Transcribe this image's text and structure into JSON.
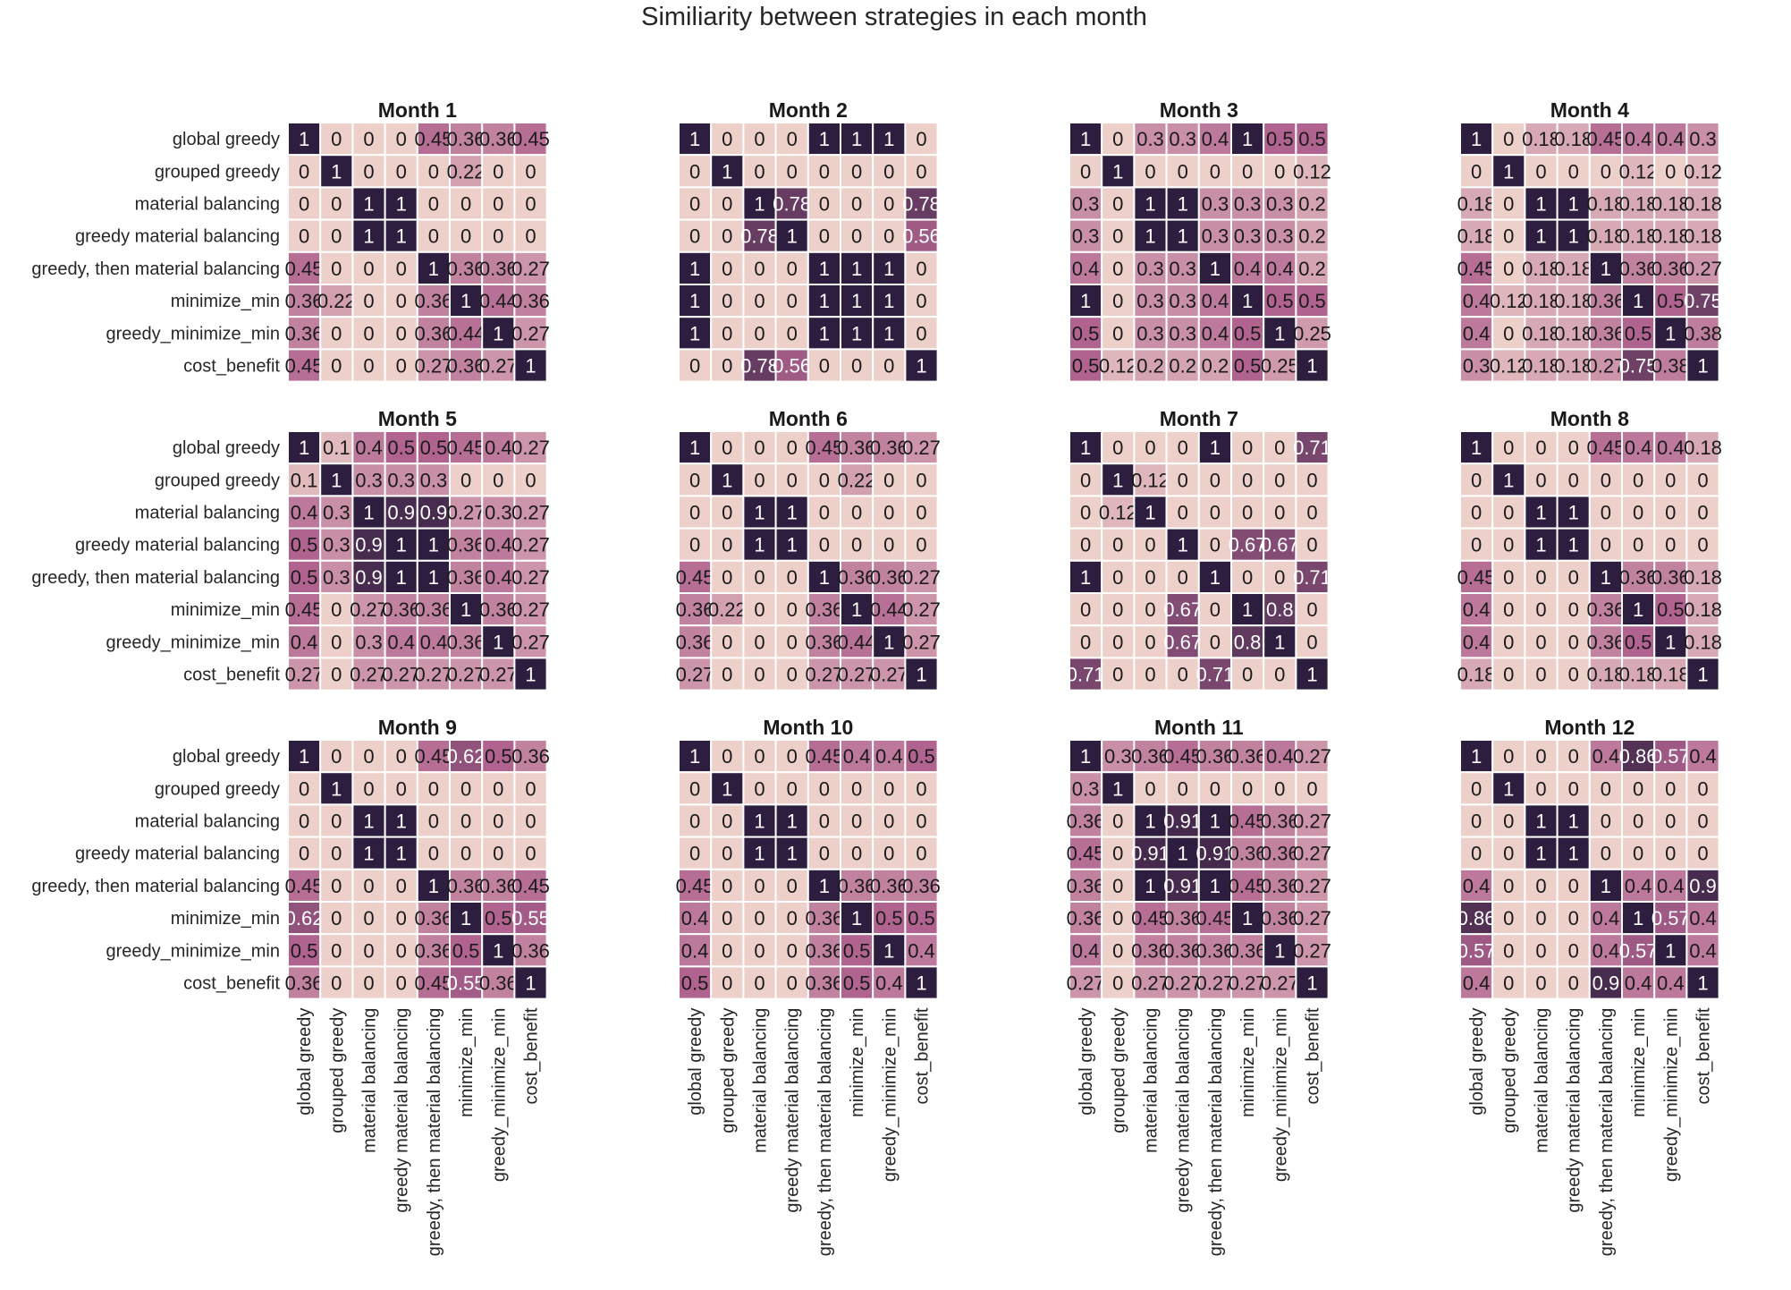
{
  "chart_data": {
    "type": "heatmap",
    "title": "Similiarity between strategies in each month",
    "labels": [
      "global greedy",
      "grouped greedy",
      "material balancing",
      "greedy material balancing",
      "greedy, then material balancing",
      "minimize_min",
      "greedy_minimize_min",
      "cost_benefit"
    ],
    "value_range": [
      0,
      1
    ],
    "colors": {
      "low": "#ecd0c9",
      "mid": "#b0638f",
      "high": "#2d1e3f",
      "label_dark": "#1a1a1a",
      "label_light": "#ffffff",
      "grid_line": "#ffffff"
    },
    "panels": [
      {
        "title": "Month 1",
        "matrix": [
          [
            "1",
            "0",
            "0",
            "0",
            "0.45",
            "0.36",
            "0.36",
            "0.45"
          ],
          [
            "0",
            "1",
            "0",
            "0",
            "0",
            "0.22",
            "0",
            "0"
          ],
          [
            "0",
            "0",
            "1",
            "1",
            "0",
            "0",
            "0",
            "0"
          ],
          [
            "0",
            "0",
            "1",
            "1",
            "0",
            "0",
            "0",
            "0"
          ],
          [
            "0.45",
            "0",
            "0",
            "0",
            "1",
            "0.36",
            "0.36",
            "0.27"
          ],
          [
            "0.36",
            "0.22",
            "0",
            "0",
            "0.36",
            "1",
            "0.44",
            "0.36"
          ],
          [
            "0.36",
            "0",
            "0",
            "0",
            "0.36",
            "0.44",
            "1",
            "0.27"
          ],
          [
            "0.45",
            "0",
            "0",
            "0",
            "0.27",
            "0.36",
            "0.27",
            "1"
          ]
        ]
      },
      {
        "title": "Month 2",
        "matrix": [
          [
            "1",
            "0",
            "0",
            "0",
            "1",
            "1",
            "1",
            "0"
          ],
          [
            "0",
            "1",
            "0",
            "0",
            "0",
            "0",
            "0",
            "0"
          ],
          [
            "0",
            "0",
            "1",
            "0.78",
            "0",
            "0",
            "0",
            "0.78"
          ],
          [
            "0",
            "0",
            "0.78",
            "1",
            "0",
            "0",
            "0",
            "0.56"
          ],
          [
            "1",
            "0",
            "0",
            "0",
            "1",
            "1",
            "1",
            "0"
          ],
          [
            "1",
            "0",
            "0",
            "0",
            "1",
            "1",
            "1",
            "0"
          ],
          [
            "1",
            "0",
            "0",
            "0",
            "1",
            "1",
            "1",
            "0"
          ],
          [
            "0",
            "0",
            "0.78",
            "0.56",
            "0",
            "0",
            "0",
            "1"
          ]
        ]
      },
      {
        "title": "Month 3",
        "matrix": [
          [
            "1",
            "0",
            "0.3",
            "0.3",
            "0.4",
            "1",
            "0.5",
            "0.5"
          ],
          [
            "0",
            "1",
            "0",
            "0",
            "0",
            "0",
            "0",
            "0.12"
          ],
          [
            "0.3",
            "0",
            "1",
            "1",
            "0.3",
            "0.3",
            "0.3",
            "0.2"
          ],
          [
            "0.3",
            "0",
            "1",
            "1",
            "0.3",
            "0.3",
            "0.3",
            "0.2"
          ],
          [
            "0.4",
            "0",
            "0.3",
            "0.3",
            "1",
            "0.4",
            "0.4",
            "0.2"
          ],
          [
            "1",
            "0",
            "0.3",
            "0.3",
            "0.4",
            "1",
            "0.5",
            "0.5"
          ],
          [
            "0.5",
            "0",
            "0.3",
            "0.3",
            "0.4",
            "0.5",
            "1",
            "0.25"
          ],
          [
            "0.5",
            "0.12",
            "0.2",
            "0.2",
            "0.2",
            "0.5",
            "0.25",
            "1"
          ]
        ]
      },
      {
        "title": "Month 4",
        "matrix": [
          [
            "1",
            "0",
            "0.18",
            "0.18",
            "0.45",
            "0.4",
            "0.4",
            "0.3"
          ],
          [
            "0",
            "1",
            "0",
            "0",
            "0",
            "0.12",
            "0",
            "0.12"
          ],
          [
            "0.18",
            "0",
            "1",
            "1",
            "0.18",
            "0.18",
            "0.18",
            "0.18"
          ],
          [
            "0.18",
            "0",
            "1",
            "1",
            "0.18",
            "0.18",
            "0.18",
            "0.18"
          ],
          [
            "0.45",
            "0",
            "0.18",
            "0.18",
            "1",
            "0.36",
            "0.36",
            "0.27"
          ],
          [
            "0.4",
            "0.12",
            "0.18",
            "0.18",
            "0.36",
            "1",
            "0.5",
            "0.75"
          ],
          [
            "0.4",
            "0",
            "0.18",
            "0.18",
            "0.36",
            "0.5",
            "1",
            "0.38"
          ],
          [
            "0.3",
            "0.12",
            "0.18",
            "0.18",
            "0.27",
            "0.75",
            "0.38",
            "1"
          ]
        ]
      },
      {
        "title": "Month 5",
        "matrix": [
          [
            "1",
            "0.1",
            "0.4",
            "0.5",
            "0.5",
            "0.45",
            "0.4",
            "0.27"
          ],
          [
            "0.1",
            "1",
            "0.3",
            "0.3",
            "0.3",
            "0",
            "0",
            "0"
          ],
          [
            "0.4",
            "0.3",
            "1",
            "0.9",
            "0.9",
            "0.27",
            "0.3",
            "0.27"
          ],
          [
            "0.5",
            "0.3",
            "0.9",
            "1",
            "1",
            "0.36",
            "0.4",
            "0.27"
          ],
          [
            "0.5",
            "0.3",
            "0.9",
            "1",
            "1",
            "0.36",
            "0.4",
            "0.27"
          ],
          [
            "0.45",
            "0",
            "0.27",
            "0.36",
            "0.36",
            "1",
            "0.36",
            "0.27"
          ],
          [
            "0.4",
            "0",
            "0.3",
            "0.4",
            "0.4",
            "0.36",
            "1",
            "0.27"
          ],
          [
            "0.27",
            "0",
            "0.27",
            "0.27",
            "0.27",
            "0.27",
            "0.27",
            "1"
          ]
        ]
      },
      {
        "title": "Month 6",
        "matrix": [
          [
            "1",
            "0",
            "0",
            "0",
            "0.45",
            "0.36",
            "0.36",
            "0.27"
          ],
          [
            "0",
            "1",
            "0",
            "0",
            "0",
            "0.22",
            "0",
            "0"
          ],
          [
            "0",
            "0",
            "1",
            "1",
            "0",
            "0",
            "0",
            "0"
          ],
          [
            "0",
            "0",
            "1",
            "1",
            "0",
            "0",
            "0",
            "0"
          ],
          [
            "0.45",
            "0",
            "0",
            "0",
            "1",
            "0.36",
            "0.36",
            "0.27"
          ],
          [
            "0.36",
            "0.22",
            "0",
            "0",
            "0.36",
            "1",
            "0.44",
            "0.27"
          ],
          [
            "0.36",
            "0",
            "0",
            "0",
            "0.36",
            "0.44",
            "1",
            "0.27"
          ],
          [
            "0.27",
            "0",
            "0",
            "0",
            "0.27",
            "0.27",
            "0.27",
            "1"
          ]
        ]
      },
      {
        "title": "Month 7",
        "matrix": [
          [
            "1",
            "0",
            "0",
            "0",
            "1",
            "0",
            "0",
            "0.71"
          ],
          [
            "0",
            "1",
            "0.12",
            "0",
            "0",
            "0",
            "0",
            "0"
          ],
          [
            "0",
            "0.12",
            "1",
            "0",
            "0",
            "0",
            "0",
            "0"
          ],
          [
            "0",
            "0",
            "0",
            "1",
            "0",
            "0.67",
            "0.67",
            "0"
          ],
          [
            "1",
            "0",
            "0",
            "0",
            "1",
            "0",
            "0",
            "0.71"
          ],
          [
            "0",
            "0",
            "0",
            "0.67",
            "0",
            "1",
            "0.8",
            "0"
          ],
          [
            "0",
            "0",
            "0",
            "0.67",
            "0",
            "0.8",
            "1",
            "0"
          ],
          [
            "0.71",
            "0",
            "0",
            "0",
            "0.71",
            "0",
            "0",
            "1"
          ]
        ]
      },
      {
        "title": "Month 8",
        "matrix": [
          [
            "1",
            "0",
            "0",
            "0",
            "0.45",
            "0.4",
            "0.4",
            "0.18"
          ],
          [
            "0",
            "1",
            "0",
            "0",
            "0",
            "0",
            "0",
            "0"
          ],
          [
            "0",
            "0",
            "1",
            "1",
            "0",
            "0",
            "0",
            "0"
          ],
          [
            "0",
            "0",
            "1",
            "1",
            "0",
            "0",
            "0",
            "0"
          ],
          [
            "0.45",
            "0",
            "0",
            "0",
            "1",
            "0.36",
            "0.36",
            "0.18"
          ],
          [
            "0.4",
            "0",
            "0",
            "0",
            "0.36",
            "1",
            "0.5",
            "0.18"
          ],
          [
            "0.4",
            "0",
            "0",
            "0",
            "0.36",
            "0.5",
            "1",
            "0.18"
          ],
          [
            "0.18",
            "0",
            "0",
            "0",
            "0.18",
            "0.18",
            "0.18",
            "1"
          ]
        ]
      },
      {
        "title": "Month 9",
        "matrix": [
          [
            "1",
            "0",
            "0",
            "0",
            "0.45",
            "0.62",
            "0.5",
            "0.36"
          ],
          [
            "0",
            "1",
            "0",
            "0",
            "0",
            "0",
            "0",
            "0"
          ],
          [
            "0",
            "0",
            "1",
            "1",
            "0",
            "0",
            "0",
            "0"
          ],
          [
            "0",
            "0",
            "1",
            "1",
            "0",
            "0",
            "0",
            "0"
          ],
          [
            "0.45",
            "0",
            "0",
            "0",
            "1",
            "0.36",
            "0.36",
            "0.45"
          ],
          [
            "0.62",
            "0",
            "0",
            "0",
            "0.36",
            "1",
            "0.5",
            "0.55"
          ],
          [
            "0.5",
            "0",
            "0",
            "0",
            "0.36",
            "0.5",
            "1",
            "0.36"
          ],
          [
            "0.36",
            "0",
            "0",
            "0",
            "0.45",
            "0.55",
            "0.36",
            "1"
          ]
        ]
      },
      {
        "title": "Month 10",
        "matrix": [
          [
            "1",
            "0",
            "0",
            "0",
            "0.45",
            "0.4",
            "0.4",
            "0.5"
          ],
          [
            "0",
            "1",
            "0",
            "0",
            "0",
            "0",
            "0",
            "0"
          ],
          [
            "0",
            "0",
            "1",
            "1",
            "0",
            "0",
            "0",
            "0"
          ],
          [
            "0",
            "0",
            "1",
            "1",
            "0",
            "0",
            "0",
            "0"
          ],
          [
            "0.45",
            "0",
            "0",
            "0",
            "1",
            "0.36",
            "0.36",
            "0.36"
          ],
          [
            "0.4",
            "0",
            "0",
            "0",
            "0.36",
            "1",
            "0.5",
            "0.5"
          ],
          [
            "0.4",
            "0",
            "0",
            "0",
            "0.36",
            "0.5",
            "1",
            "0.4"
          ],
          [
            "0.5",
            "0",
            "0",
            "0",
            "0.36",
            "0.5",
            "0.4",
            "1"
          ]
        ]
      },
      {
        "title": "Month 11",
        "matrix": [
          [
            "1",
            "0.3",
            "0.36",
            "0.45",
            "0.36",
            "0.36",
            "0.4",
            "0.27"
          ],
          [
            "0.3",
            "1",
            "0",
            "0",
            "0",
            "0",
            "0",
            "0"
          ],
          [
            "0.36",
            "0",
            "1",
            "0.91",
            "1",
            "0.45",
            "0.36",
            "0.27"
          ],
          [
            "0.45",
            "0",
            "0.91",
            "1",
            "0.91",
            "0.36",
            "0.36",
            "0.27"
          ],
          [
            "0.36",
            "0",
            "1",
            "0.91",
            "1",
            "0.45",
            "0.36",
            "0.27"
          ],
          [
            "0.36",
            "0",
            "0.45",
            "0.36",
            "0.45",
            "1",
            "0.36",
            "0.27"
          ],
          [
            "0.4",
            "0",
            "0.36",
            "0.36",
            "0.36",
            "0.36",
            "1",
            "0.27"
          ],
          [
            "0.27",
            "0",
            "0.27",
            "0.27",
            "0.27",
            "0.27",
            "0.27",
            "1"
          ]
        ]
      },
      {
        "title": "Month 12",
        "matrix": [
          [
            "1",
            "0",
            "0",
            "0",
            "0.4",
            "0.86",
            "0.57",
            "0.4"
          ],
          [
            "0",
            "1",
            "0",
            "0",
            "0",
            "0",
            "0",
            "0"
          ],
          [
            "0",
            "0",
            "1",
            "1",
            "0",
            "0",
            "0",
            "0"
          ],
          [
            "0",
            "0",
            "1",
            "1",
            "0",
            "0",
            "0",
            "0"
          ],
          [
            "0.4",
            "0",
            "0",
            "0",
            "1",
            "0.4",
            "0.4",
            "0.9"
          ],
          [
            "0.86",
            "0",
            "0",
            "0",
            "0.4",
            "1",
            "0.57",
            "0.4"
          ],
          [
            "0.57",
            "0",
            "0",
            "0",
            "0.4",
            "0.57",
            "1",
            "0.4"
          ],
          [
            "0.4",
            "0",
            "0",
            "0",
            "0.9",
            "0.4",
            "0.4",
            "1"
          ]
        ]
      }
    ]
  }
}
